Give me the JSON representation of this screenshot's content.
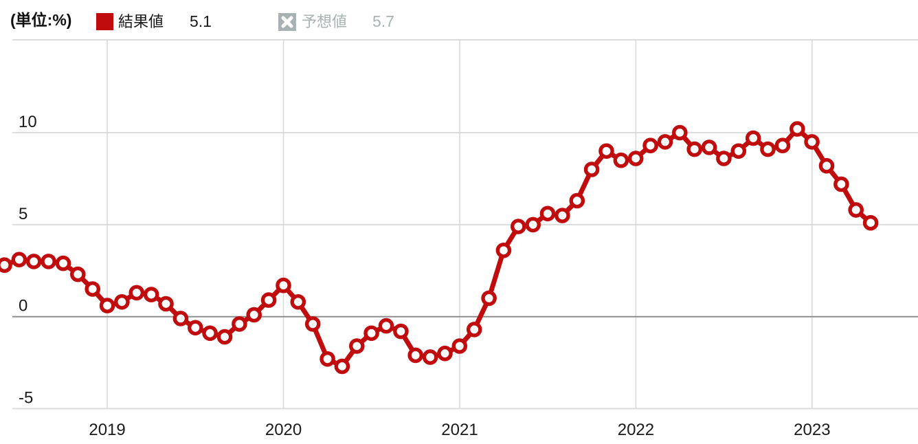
{
  "header": {
    "unit_label": "(単位:%)",
    "result_legend": {
      "label": "結果値",
      "value": "5.1",
      "swatch_color": "#c00c0c"
    },
    "forecast_legend": {
      "label": "予想値",
      "value": "5.7",
      "swatch_color": "#a9b2b2",
      "icon": "x-mark-icon"
    }
  },
  "colors": {
    "line": "#c00c0c",
    "marker_fill": "#ffffff",
    "grid": "#dcdcdc",
    "vgrid": "#d7d7d7",
    "zero_line": "#8d8d8d",
    "axis_text": "#1a1a1a",
    "background": "#ffffff"
  },
  "chart_data": {
    "type": "line",
    "title": "",
    "unit": "%",
    "grid": true,
    "legend_position": "top",
    "zero_line_emphasized": true,
    "ylim": [
      -5,
      15
    ],
    "y_ticks": [
      "10",
      "5",
      "0",
      "-5"
    ],
    "x_tick_labels": [
      "2019",
      "2020",
      "2021",
      "2022",
      "2023"
    ],
    "x": [
      "2018-06",
      "2018-07",
      "2018-08",
      "2018-09",
      "2018-10",
      "2018-11",
      "2018-12",
      "2019-01",
      "2019-02",
      "2019-03",
      "2019-04",
      "2019-05",
      "2019-06",
      "2019-07",
      "2019-08",
      "2019-09",
      "2019-10",
      "2019-11",
      "2019-12",
      "2020-01",
      "2020-02",
      "2020-03",
      "2020-04",
      "2020-05",
      "2020-06",
      "2020-07",
      "2020-08",
      "2020-09",
      "2020-10",
      "2020-11",
      "2020-12",
      "2021-01",
      "2021-02",
      "2021-03",
      "2021-04",
      "2021-05",
      "2021-06",
      "2021-07",
      "2021-08",
      "2021-09",
      "2021-10",
      "2021-11",
      "2021-12",
      "2022-01",
      "2022-02",
      "2022-03",
      "2022-04",
      "2022-05",
      "2022-06",
      "2022-07",
      "2022-08",
      "2022-09",
      "2022-10",
      "2022-11",
      "2022-12",
      "2023-01",
      "2023-02",
      "2023-03",
      "2023-04",
      "2023-05"
    ],
    "series": [
      {
        "name": "結果値",
        "color": "#c00c0c",
        "values": [
          2.8,
          3.1,
          3.0,
          3.0,
          2.9,
          2.3,
          1.5,
          0.6,
          0.8,
          1.3,
          1.2,
          0.7,
          -0.1,
          -0.6,
          -0.9,
          -1.1,
          -0.4,
          0.1,
          0.9,
          1.7,
          0.8,
          -0.4,
          -2.3,
          -2.7,
          -1.6,
          -0.9,
          -0.5,
          -0.8,
          -2.1,
          -2.2,
          -2.0,
          -1.6,
          -0.7,
          1.0,
          3.6,
          4.9,
          5.0,
          5.6,
          5.5,
          6.3,
          8.0,
          9.0,
          8.5,
          8.6,
          9.3,
          9.5,
          10.0,
          9.1,
          9.2,
          8.6,
          9.0,
          9.7,
          9.1,
          9.3,
          10.2,
          9.5,
          8.2,
          7.2,
          5.8,
          5.1
        ]
      }
    ]
  }
}
